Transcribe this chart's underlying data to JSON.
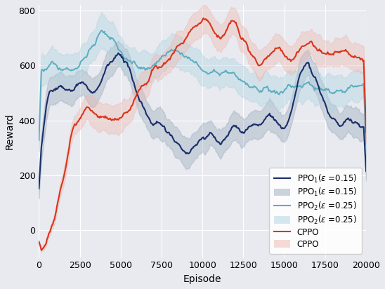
{
  "xlabel": "Episode",
  "ylabel": "Reward",
  "xlim": [
    0,
    20000
  ],
  "ylim": [
    -100,
    820
  ],
  "yticks": [
    0,
    200,
    400,
    600,
    800
  ],
  "xticks": [
    0,
    2500,
    5000,
    7500,
    10000,
    12500,
    15000,
    17500,
    20000
  ],
  "bg_color": "#e8eaf0",
  "grid_color": "#ffffff",
  "ppo1_color": "#1a2e6b",
  "ppo1_shade_color": "#9aaabb",
  "ppo2_color": "#5badc0",
  "ppo2_shade_color": "#b0d4e0",
  "cppo_color": "#d9341a",
  "cppo_shade_color": "#f0b8b0",
  "n_points": 401
}
